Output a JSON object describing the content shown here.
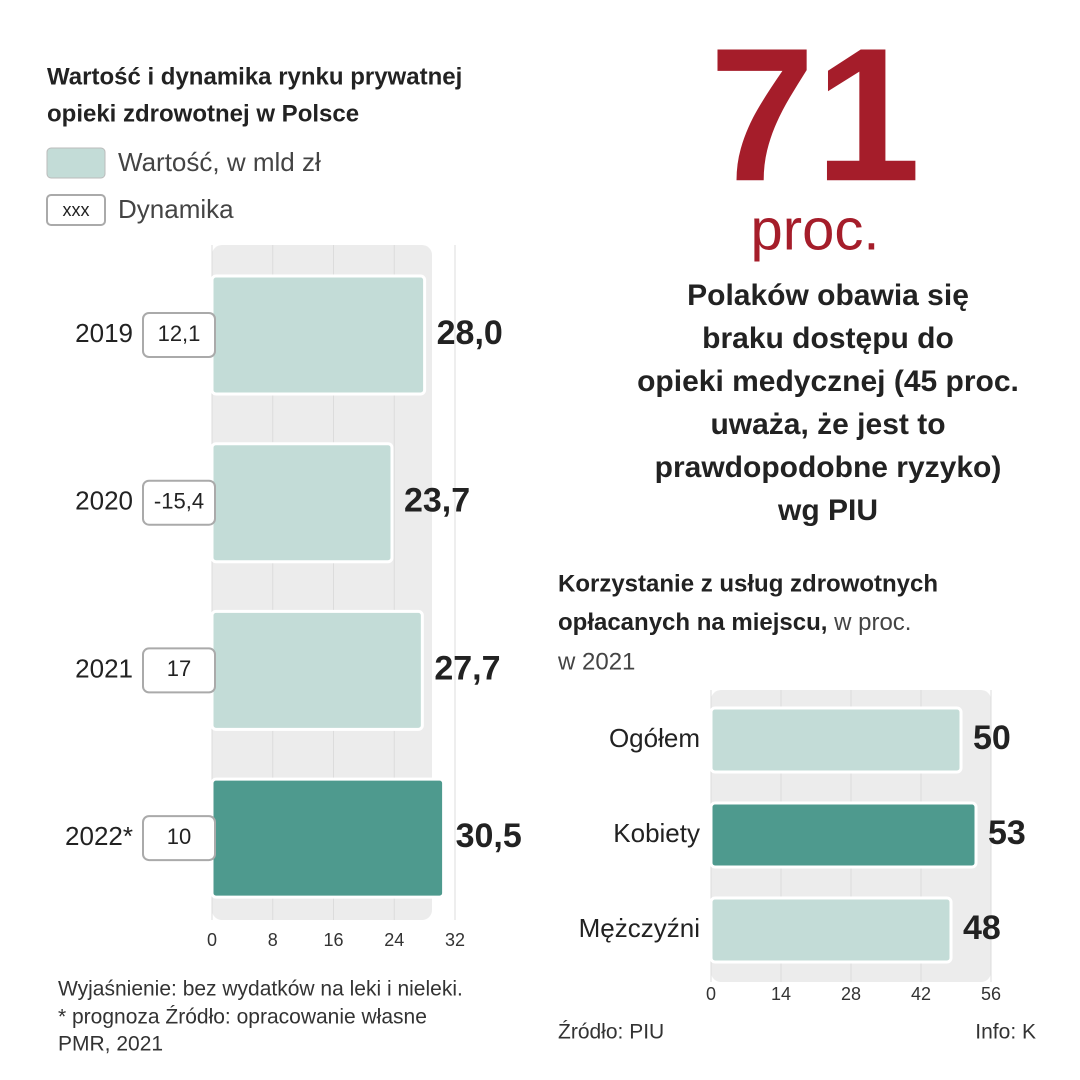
{
  "chart_data": [
    {
      "type": "hbar",
      "title": [
        "Wartość  i dynamika rynku prywatnej",
        "opieki zdrowotnej w Polsce"
      ],
      "categories": [
        "2019",
        "2020",
        "2021",
        "2022*"
      ],
      "series": [
        {
          "name": "Wartość, w mld zł",
          "color": "#c3dcd7",
          "values": [
            28.0,
            23.7,
            27.7,
            30.5
          ],
          "value_labels": [
            "28,0",
            "23,7",
            "27,7",
            "30,5"
          ]
        }
      ],
      "colors": [
        "#c3dcd7",
        "#c3dcd7",
        "#c3dcd7",
        "#4e9a8e"
      ],
      "dynamics_name": "Dynamika",
      "dynamics_swatch": "xxx",
      "dynamics": [
        12.1,
        -15.4,
        17,
        10
      ],
      "dynamics_labels": [
        "12,1",
        "-15,4",
        "17",
        "10"
      ],
      "xlim": [
        0,
        32
      ],
      "xticks": [
        0,
        8,
        16,
        24,
        32
      ],
      "grid": true,
      "notes": [
        "Wyjaśnienie: bez wydatków na leki i nieleki.",
        "* prognoza Źródło: opracowanie własne",
        "PMR, 2021"
      ]
    },
    {
      "type": "hbar",
      "title": [
        "Korzystanie z usług zdrowotnych",
        "opłacanych na miejscu,"
      ],
      "subtitle": [
        " w proc.",
        "w 2021"
      ],
      "categories": [
        "Ogółem",
        "Kobiety",
        "Mężczyźni"
      ],
      "series": [
        {
          "name": null,
          "color": "#c3dcd7",
          "values": [
            50,
            53,
            48
          ]
        }
      ],
      "colors": [
        "#c3dcd7",
        "#4e9a8e",
        "#c3dcd7"
      ],
      "xlim": [
        0,
        56
      ],
      "xticks": [
        0,
        14,
        28,
        42,
        56
      ],
      "grid": true,
      "source": "Źródło: PIU",
      "credit": "Info: K"
    }
  ],
  "headline": {
    "number": "71",
    "unit": "proc.",
    "color": "#a51d2a",
    "text": [
      "Polaków obawia się",
      "braku dostępu do",
      "opieki medycznej (45 proc.",
      "uważa, że jest to",
      "prawdopodobne ryzyko)",
      "wg PIU"
    ]
  }
}
